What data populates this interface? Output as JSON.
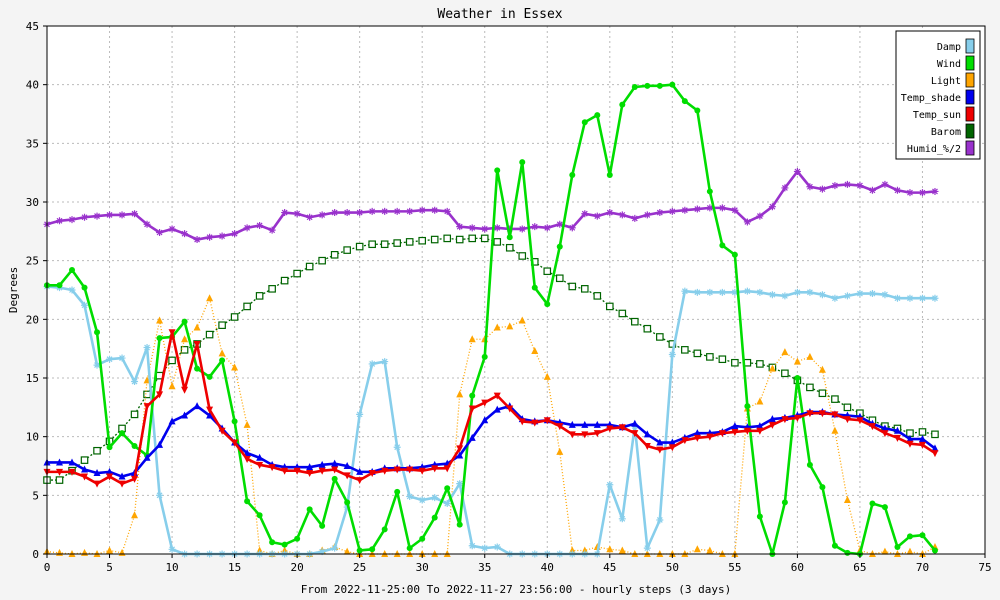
{
  "chart_data": {
    "type": "line",
    "title": "Weather in Essex",
    "xlabel": "From 2022-11-25:00 To 2022-11-27 23:56:00 - hourly steps (3 days)",
    "ylabel": "Degrees",
    "xlim": [
      0,
      75
    ],
    "ylim": [
      0,
      45
    ],
    "xticks": [
      0,
      5,
      10,
      15,
      20,
      25,
      30,
      35,
      40,
      45,
      50,
      55,
      60,
      65,
      70,
      75
    ],
    "yticks": [
      0,
      5,
      10,
      15,
      20,
      25,
      30,
      35,
      40,
      45
    ],
    "grid": true,
    "legend_position": "top-right",
    "series": [
      {
        "name": "Damp",
        "color": "#87ceeb",
        "marker": "star",
        "dash": "",
        "values": [
          22.8,
          22.7,
          22.5,
          21.2,
          16.1,
          16.6,
          16.7,
          14.7,
          17.6,
          5.0,
          0.4,
          0,
          0,
          0,
          0,
          0,
          0,
          0,
          0,
          0,
          0,
          0,
          0.2,
          0.5,
          4.0,
          11.9,
          16.2,
          16.4,
          9.1,
          4.9,
          4.6,
          4.8,
          4.3,
          6.0,
          0.7,
          0.5,
          0.6,
          0,
          0,
          0,
          0,
          0,
          0,
          0,
          0,
          5.9,
          3.0,
          10.9,
          0.5,
          2.9,
          17.0,
          22.4,
          22.3,
          22.3,
          22.3,
          22.3,
          22.4,
          22.3,
          22.1,
          22.0,
          22.3,
          22.3,
          22.1,
          21.8,
          22.0,
          22.2,
          22.2,
          22.1,
          21.8,
          21.8,
          21.8,
          21.8
        ]
      },
      {
        "name": "Wind",
        "color": "#00dd00",
        "marker": "circle",
        "dash": "",
        "values": [
          22.9,
          22.9,
          24.2,
          22.7,
          18.9,
          9.1,
          10.3,
          9.2,
          8.4,
          18.4,
          18.5,
          19.8,
          15.8,
          15.1,
          16.5,
          11.3,
          4.5,
          3.3,
          1.0,
          0.8,
          1.3,
          3.8,
          2.4,
          6.4,
          4.4,
          0.3,
          0.4,
          2.1,
          5.3,
          0.5,
          1.3,
          3.1,
          5.6,
          2.5,
          13.5,
          16.8,
          32.7,
          27.0,
          33.4,
          22.7,
          21.3,
          26.2,
          32.3,
          36.8,
          37.4,
          32.3,
          38.3,
          39.8,
          39.9,
          39.9,
          40.0,
          38.6,
          37.8,
          30.9,
          26.3,
          25.5,
          12.6,
          3.2,
          0,
          4.4,
          15.0,
          7.6,
          5.7,
          0.7,
          0.1,
          0,
          4.3,
          4.0,
          0.6,
          1.5,
          1.6,
          0.3
        ]
      },
      {
        "name": "Light",
        "color": "#ffa500",
        "marker": "triangle",
        "dash": "1,2",
        "values": [
          0.2,
          0.1,
          0,
          0.1,
          0,
          0.3,
          0.1,
          3.3,
          14.8,
          19.9,
          14.3,
          18.3,
          19.3,
          21.8,
          17.1,
          15.9,
          11.0,
          0.3,
          0,
          0.3,
          0,
          0,
          0.3,
          0.6,
          0.2,
          0,
          0,
          0,
          0,
          0,
          0,
          0,
          0,
          13.6,
          18.3,
          18.3,
          19.3,
          19.4,
          19.9,
          17.3,
          15.1,
          8.7,
          0.3,
          0.3,
          0.6,
          0.4,
          0.3,
          0,
          0,
          0,
          0,
          0,
          0.4,
          0.3,
          0,
          0,
          12.4,
          13.0,
          15.8,
          17.2,
          16.4,
          16.8,
          15.7,
          10.5,
          4.6,
          0.3,
          0,
          0.2,
          0,
          0.2,
          0,
          0.6
        ]
      },
      {
        "name": "Temp_shade",
        "color": "#0000ee",
        "marker": "triangle",
        "dash": "",
        "values": [
          7.8,
          7.8,
          7.8,
          7.2,
          6.9,
          7.0,
          6.6,
          6.9,
          8.2,
          9.3,
          11.3,
          11.8,
          12.6,
          11.8,
          10.7,
          9.5,
          8.6,
          8.2,
          7.6,
          7.4,
          7.4,
          7.4,
          7.6,
          7.7,
          7.5,
          7.0,
          7.0,
          7.3,
          7.3,
          7.3,
          7.4,
          7.6,
          7.7,
          8.4,
          9.9,
          11.4,
          12.3,
          12.6,
          11.5,
          11.3,
          11.4,
          11.2,
          11.0,
          11.0,
          11.0,
          11.0,
          10.8,
          11.1,
          10.2,
          9.5,
          9.5,
          9.9,
          10.3,
          10.3,
          10.4,
          10.9,
          10.8,
          10.9,
          11.5,
          11.6,
          11.8,
          12.1,
          12.1,
          11.9,
          11.8,
          11.7,
          11.1,
          10.7,
          10.5,
          9.8,
          9.8,
          9.0
        ]
      },
      {
        "name": "Temp_sun",
        "color": "#ee0000",
        "marker": "triangle-down",
        "dash": "",
        "values": [
          7.0,
          7.0,
          7.0,
          6.6,
          6.0,
          6.6,
          6.0,
          6.4,
          12.6,
          13.6,
          18.9,
          14.0,
          17.9,
          12.3,
          10.5,
          9.5,
          8.1,
          7.6,
          7.4,
          7.1,
          7.1,
          6.9,
          7.1,
          7.2,
          6.7,
          6.3,
          6.9,
          7.1,
          7.2,
          7.2,
          7.1,
          7.3,
          7.3,
          9.0,
          12.4,
          12.9,
          13.5,
          12.4,
          11.3,
          11.2,
          11.4,
          10.9,
          10.2,
          10.2,
          10.3,
          10.7,
          10.8,
          10.3,
          9.2,
          8.9,
          9.1,
          9.7,
          9.9,
          10.0,
          10.3,
          10.4,
          10.5,
          10.5,
          11.0,
          11.5,
          11.6,
          12.0,
          12.0,
          11.9,
          11.5,
          11.4,
          10.9,
          10.3,
          9.9,
          9.4,
          9.3,
          8.6
        ]
      },
      {
        "name": "Barom",
        "color": "#006400",
        "marker": "square",
        "dash": "2,2",
        "values": [
          6.3,
          6.3,
          7.1,
          8.0,
          8.8,
          9.6,
          10.7,
          11.9,
          13.6,
          15.2,
          16.5,
          17.4,
          17.9,
          18.7,
          19.5,
          20.2,
          21.1,
          22.0,
          22.6,
          23.3,
          23.9,
          24.5,
          25.0,
          25.5,
          25.9,
          26.2,
          26.4,
          26.4,
          26.5,
          26.6,
          26.7,
          26.8,
          26.9,
          26.8,
          26.9,
          26.9,
          26.6,
          26.1,
          25.4,
          24.9,
          24.1,
          23.5,
          22.8,
          22.6,
          22.0,
          21.1,
          20.5,
          19.8,
          19.2,
          18.5,
          17.9,
          17.4,
          17.1,
          16.8,
          16.6,
          16.3,
          16.3,
          16.2,
          15.9,
          15.4,
          14.8,
          14.2,
          13.7,
          13.2,
          12.5,
          12.0,
          11.4,
          10.9,
          10.7,
          10.3,
          10.4,
          10.2
        ]
      },
      {
        "name": "Humid_%/2",
        "color": "#9932cc",
        "marker": "star",
        "dash": "",
        "values": [
          28.1,
          28.4,
          28.5,
          28.7,
          28.8,
          28.9,
          28.9,
          29.0,
          28.1,
          27.4,
          27.7,
          27.3,
          26.8,
          27.0,
          27.1,
          27.3,
          27.8,
          28.0,
          27.6,
          29.1,
          29.0,
          28.7,
          28.9,
          29.1,
          29.1,
          29.1,
          29.2,
          29.2,
          29.2,
          29.2,
          29.3,
          29.3,
          29.2,
          27.9,
          27.8,
          27.7,
          27.8,
          27.7,
          27.7,
          27.9,
          27.8,
          28.1,
          27.8,
          29.0,
          28.8,
          29.1,
          28.9,
          28.6,
          28.9,
          29.1,
          29.2,
          29.3,
          29.4,
          29.5,
          29.5,
          29.3,
          28.3,
          28.8,
          29.6,
          31.2,
          32.6,
          31.3,
          31.1,
          31.4,
          31.5,
          31.4,
          31.0,
          31.5,
          31.0,
          30.8,
          30.8,
          30.9
        ]
      }
    ]
  }
}
